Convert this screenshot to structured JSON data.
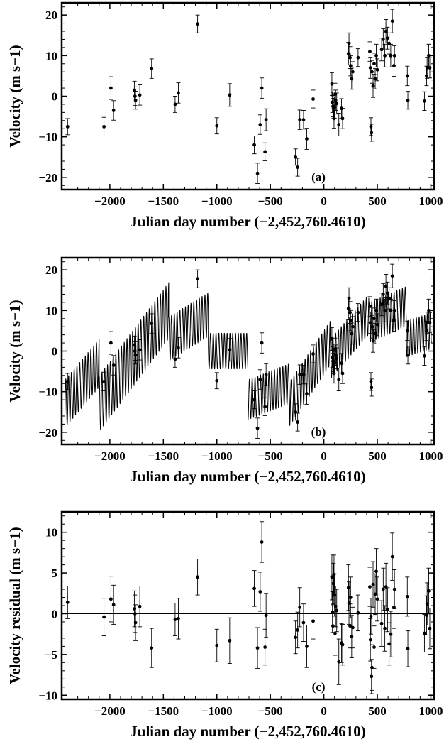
{
  "chart_data": [
    {
      "type": "scatter",
      "panel": "(a)",
      "xlabel": "Julian day number",
      "xlabel_offset": "(−2,452,760.4610)",
      "ylabel": "Velocity",
      "ylabel_unit": "(m s−1)",
      "xlim": [
        -2450,
        1030
      ],
      "ylim": [
        -23,
        23
      ],
      "xticks": [
        -2000,
        -1500,
        -1000,
        -500,
        0,
        500,
        1000
      ],
      "xtick_labels": [
        "−2000",
        "−1500",
        "−1000",
        "−500",
        "0",
        "500",
        "1000"
      ],
      "yticks": [
        -20,
        -10,
        0,
        10,
        20
      ],
      "ytick_labels": [
        "−20",
        "−10",
        "0",
        "10",
        "20"
      ],
      "points": [
        [
          -2395,
          -7.5,
          2
        ],
        [
          -2055,
          -7.5,
          2.3
        ],
        [
          -1990,
          2,
          2.8
        ],
        [
          -1965,
          -3.5,
          2.4
        ],
        [
          -1770,
          1.5,
          2.2
        ],
        [
          -1765,
          0,
          2.3
        ],
        [
          -1760,
          -1,
          2.2
        ],
        [
          -1720,
          0.3,
          2.5
        ],
        [
          -1610,
          6.8,
          2.4
        ],
        [
          -1390,
          -2,
          2
        ],
        [
          -1360,
          0.8,
          2.5
        ],
        [
          -1180,
          17.8,
          2.2
        ],
        [
          -1000,
          -7.3,
          2
        ],
        [
          -880,
          0.3,
          2.8
        ],
        [
          -650,
          -12,
          2.2
        ],
        [
          -620,
          -19,
          2.5
        ],
        [
          -595,
          -7,
          2.4
        ],
        [
          -580,
          2,
          2.5
        ],
        [
          -550,
          -13.7,
          2.2
        ],
        [
          -540,
          -5.8,
          2.7
        ],
        [
          -265,
          -15,
          2
        ],
        [
          -245,
          -17.5,
          2.2
        ],
        [
          -225,
          -5.8,
          2.4
        ],
        [
          -190,
          -5.8,
          2.3
        ],
        [
          -160,
          -10.5,
          2.6
        ],
        [
          -100,
          -0.7,
          2.2
        ],
        [
          75,
          3,
          2.8
        ],
        [
          80,
          -1.5,
          2.5
        ],
        [
          85,
          -2.5,
          2.6
        ],
        [
          90,
          -3,
          2.5
        ],
        [
          95,
          -5.5,
          2.4
        ],
        [
          100,
          -2.8,
          2.6
        ],
        [
          105,
          0.5,
          2.7
        ],
        [
          110,
          -1,
          2.5
        ],
        [
          120,
          -1.8,
          2.6
        ],
        [
          140,
          -7,
          2.8
        ],
        [
          165,
          -3,
          2.4
        ],
        [
          175,
          -5.5,
          2.5
        ],
        [
          230,
          10.5,
          2.8
        ],
        [
          235,
          13,
          2.6
        ],
        [
          245,
          9.5,
          2.7
        ],
        [
          250,
          7.5,
          2.5
        ],
        [
          260,
          4.3,
          2.6
        ],
        [
          270,
          6,
          2.5
        ],
        [
          320,
          9.5,
          2.2
        ],
        [
          430,
          11,
          2.4
        ],
        [
          435,
          7,
          2.6
        ],
        [
          440,
          -7.5,
          2.2
        ],
        [
          445,
          -9,
          2.1
        ],
        [
          450,
          6,
          2.8
        ],
        [
          460,
          2.5,
          2.8
        ],
        [
          470,
          8,
          2.6
        ],
        [
          480,
          4.3,
          2.5
        ],
        [
          490,
          10,
          2.8
        ],
        [
          500,
          6.5,
          2.7
        ],
        [
          540,
          11.5,
          2.8
        ],
        [
          555,
          14,
          2.6
        ],
        [
          570,
          10,
          2.8
        ],
        [
          580,
          16,
          2.9
        ],
        [
          595,
          14.3,
          2.7
        ],
        [
          610,
          13,
          2.6
        ],
        [
          625,
          10,
          2.8
        ],
        [
          640,
          18.5,
          2.9
        ],
        [
          655,
          7.5,
          2.6
        ],
        [
          660,
          10,
          2.4
        ],
        [
          780,
          5,
          2.4
        ],
        [
          785,
          -1,
          2.2
        ],
        [
          940,
          -1.2,
          2.3
        ],
        [
          960,
          5,
          2.4
        ],
        [
          965,
          7,
          2.6
        ],
        [
          980,
          10,
          2.8
        ],
        [
          990,
          7,
          2.5
        ]
      ]
    },
    {
      "type": "scatter",
      "panel": "(b)",
      "xlabel": "Julian day number",
      "xlabel_offset": "(−2,452,760.4610)",
      "ylabel": "Velocity",
      "ylabel_unit": "(m s−1)",
      "xlim": [
        -2450,
        1030
      ],
      "ylim": [
        -23,
        23
      ],
      "xticks": [
        -2000,
        -1500,
        -1000,
        -500,
        0,
        500,
        1000
      ],
      "xtick_labels": [
        "−2000",
        "−1500",
        "−1000",
        "−500",
        "0",
        "500",
        "1000"
      ],
      "yticks": [
        -20,
        -10,
        0,
        10,
        20
      ],
      "ytick_labels": [
        "−20",
        "−10",
        "0",
        "10",
        "20"
      ],
      "points_same_as": "(a)",
      "model_curve": "oscillating Keplerian fit overlaid on the data"
    },
    {
      "type": "scatter",
      "panel": "(c)",
      "xlabel": "Julian day number",
      "xlabel_offset": "(−2,452,760.4610)",
      "ylabel": "Velocity residual",
      "ylabel_unit": "(m s−1)",
      "xlim": [
        -2450,
        1030
      ],
      "ylim": [
        -10.5,
        12.5
      ],
      "xticks": [
        -2000,
        -1500,
        -1000,
        -500,
        0,
        500,
        1000
      ],
      "xtick_labels": [
        "−2000",
        "−1500",
        "−1000",
        "−500",
        "0",
        "500",
        "1000"
      ],
      "yticks": [
        -10,
        -5,
        0,
        5,
        10
      ],
      "ytick_labels": [
        "−10",
        "−5",
        "0",
        "5",
        "10"
      ],
      "zero_line": true,
      "points": [
        [
          -2395,
          1.4,
          2
        ],
        [
          -2055,
          -0.4,
          2.3
        ],
        [
          -1990,
          1.8,
          2.8
        ],
        [
          -1965,
          1.1,
          2.4
        ],
        [
          -1770,
          0.6,
          2.2
        ],
        [
          -1765,
          0,
          2.3
        ],
        [
          -1760,
          -1.1,
          2.2
        ],
        [
          -1720,
          0.9,
          2.5
        ],
        [
          -1610,
          -4.2,
          2.4
        ],
        [
          -1390,
          -0.7,
          2
        ],
        [
          -1360,
          -0.6,
          2.5
        ],
        [
          -1180,
          4.5,
          2.2
        ],
        [
          -1000,
          -3.9,
          2
        ],
        [
          -880,
          -3.3,
          2.8
        ],
        [
          -650,
          3.1,
          2.2
        ],
        [
          -620,
          -4.2,
          2.5
        ],
        [
          -595,
          2.7,
          2.4
        ],
        [
          -580,
          8.8,
          2.5
        ],
        [
          -550,
          -4.1,
          2.2
        ],
        [
          -540,
          -0.2,
          2.7
        ],
        [
          -265,
          -2.9,
          2
        ],
        [
          -245,
          -2,
          2.2
        ],
        [
          -225,
          0.8,
          2.4
        ],
        [
          -190,
          -1.1,
          2.3
        ],
        [
          -160,
          -4,
          2.6
        ],
        [
          -100,
          -0.9,
          2.2
        ],
        [
          75,
          4.5,
          2.8
        ],
        [
          80,
          0.2,
          2.5
        ],
        [
          85,
          -1.5,
          2.6
        ],
        [
          90,
          3.7,
          2.5
        ],
        [
          95,
          4.8,
          2.4
        ],
        [
          100,
          2.3,
          2.6
        ],
        [
          105,
          -2.4,
          2.7
        ],
        [
          110,
          0.9,
          2.5
        ],
        [
          120,
          0.4,
          2.6
        ],
        [
          140,
          -5.9,
          2.8
        ],
        [
          165,
          -3.6,
          2.4
        ],
        [
          175,
          -3.8,
          2.5
        ],
        [
          230,
          3.2,
          2.8
        ],
        [
          235,
          1.3,
          2.6
        ],
        [
          245,
          -1.5,
          2.7
        ],
        [
          250,
          2,
          2.5
        ],
        [
          260,
          -2.8,
          2.6
        ],
        [
          270,
          -1.7,
          2.5
        ],
        [
          320,
          0.1,
          2.2
        ],
        [
          430,
          3.3,
          2.4
        ],
        [
          435,
          -3.2,
          2.6
        ],
        [
          440,
          -0.3,
          2.2
        ],
        [
          445,
          -7.7,
          2.1
        ],
        [
          450,
          -6.6,
          2.8
        ],
        [
          460,
          3.6,
          2.8
        ],
        [
          470,
          -4.1,
          2.6
        ],
        [
          480,
          2.4,
          2.5
        ],
        [
          490,
          5.2,
          2.8
        ],
        [
          500,
          1.8,
          2.7
        ],
        [
          540,
          -1.2,
          2.8
        ],
        [
          555,
          3,
          2.6
        ],
        [
          570,
          -1.8,
          2.8
        ],
        [
          580,
          3.3,
          2.9
        ],
        [
          595,
          0.5,
          2.7
        ],
        [
          610,
          -3.7,
          2.6
        ],
        [
          625,
          -2.5,
          2.8
        ],
        [
          640,
          7,
          2.9
        ],
        [
          655,
          0.8,
          2.6
        ],
        [
          660,
          3,
          2.4
        ],
        [
          780,
          2.1,
          2.4
        ],
        [
          785,
          -4.3,
          2.2
        ],
        [
          940,
          -2.4,
          2.3
        ],
        [
          960,
          -0.2,
          2.4
        ],
        [
          965,
          1.2,
          2.6
        ],
        [
          980,
          2.8,
          2.8
        ],
        [
          990,
          -1.8,
          2.5
        ]
      ]
    }
  ]
}
